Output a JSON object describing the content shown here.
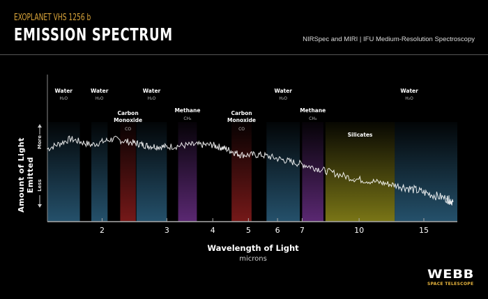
{
  "header": {
    "kicker": "EXOPLANET VHS 1256 b",
    "title": "EMISSION SPECTRUM",
    "subtitle": "NIRSpec and MIRI | IFU Medium-Resolution Spectroscopy"
  },
  "logo": {
    "main": "WEBB",
    "sub": "SPACE TELESCOPE"
  },
  "chart_data": {
    "type": "line",
    "title": "EMISSION SPECTRUM",
    "xlabel": "Wavelength of Light",
    "xunit": "microns",
    "ylabel": "Amount of Light Emitted",
    "y_more_label": "More",
    "y_less_label": "Less",
    "xscale": "log",
    "xlim": [
      1.42,
      18.5
    ],
    "ylim": [
      0,
      1
    ],
    "grid": false,
    "xticks": [
      2,
      3,
      4,
      5,
      6,
      7,
      10,
      15
    ],
    "line_color": "#ffffff",
    "series": [
      {
        "x": [
          1.42,
          1.64,
          1.87,
          2.14,
          2.44,
          2.67,
          2.98,
          3.49,
          3.98,
          4.35,
          4.76,
          5.42,
          6.21,
          7.09,
          8.1,
          9.7,
          11.5,
          13.2,
          15.1,
          17.3,
          18.0
        ],
        "y": [
          0.73,
          0.83,
          0.77,
          0.83,
          0.79,
          0.76,
          0.75,
          0.77,
          0.77,
          0.73,
          0.67,
          0.67,
          0.62,
          0.57,
          0.51,
          0.43,
          0.39,
          0.35,
          0.29,
          0.23,
          0.2
        ]
      }
    ],
    "bands": [
      {
        "name": "Water",
        "formula": "H₂O",
        "range": [
          1.42,
          1.74
        ],
        "color": "#2b5f7e"
      },
      {
        "name": "Water",
        "formula": "H₂O",
        "range": [
          1.87,
          2.07
        ],
        "color": "#2b5f7e"
      },
      {
        "name": "Carbon Monoxide",
        "formula": "CO",
        "range": [
          2.24,
          2.47
        ],
        "color": "#8a1d1d"
      },
      {
        "name": "Water",
        "formula": "H₂O",
        "range": [
          2.48,
          3.0
        ],
        "color": "#2b5f7e"
      },
      {
        "name": "Methane",
        "formula": "CH₄",
        "range": [
          3.22,
          3.62
        ],
        "color": "#6a2f86"
      },
      {
        "name": "Carbon Monoxide",
        "formula": "CO",
        "range": [
          4.5,
          5.1
        ],
        "color": "#8a1d1d"
      },
      {
        "name": "Water",
        "formula": "H₂O",
        "range": [
          5.6,
          6.9
        ],
        "color": "#2b5f7e"
      },
      {
        "name": "Methane",
        "formula": "CH₄",
        "range": [
          7.0,
          8.0
        ],
        "color": "#6a2f86"
      },
      {
        "name": "Silicates",
        "formula": "",
        "range": [
          8.1,
          12.5
        ],
        "color": "#8f8a1a"
      },
      {
        "name": "Water",
        "formula": "H₂O",
        "range": [
          12.5,
          18.5
        ],
        "color": "#2b5f7e"
      }
    ]
  }
}
